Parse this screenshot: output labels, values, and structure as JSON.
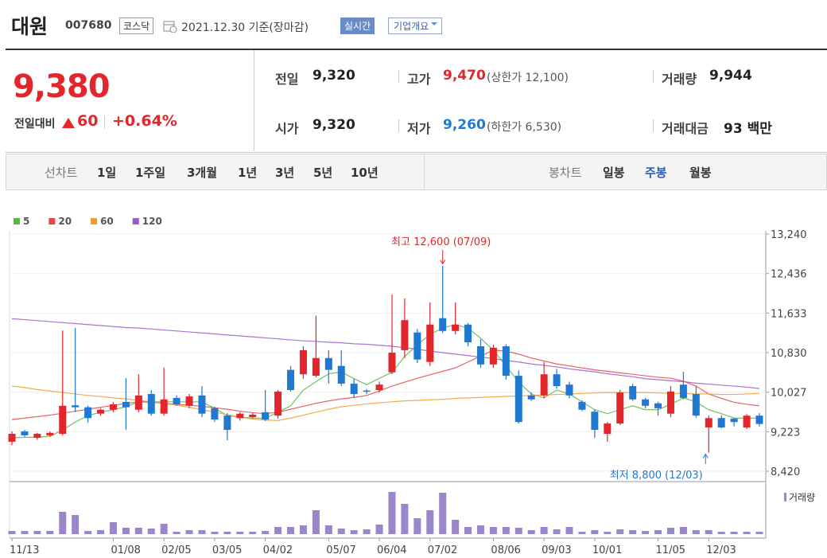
{
  "header": {
    "name": "대원",
    "code": "007680",
    "market": "코스닥",
    "date": "2021.12.30 기준(장마감)",
    "realtime": "실시간",
    "company": "기업개요"
  },
  "quote": {
    "price": "9,380",
    "change_label": "전일대비",
    "change": "60",
    "change_rate": "+0.64%"
  },
  "stats": [
    {
      "label": "전일",
      "value": "9,320"
    },
    {
      "label": "고가",
      "value": "9,470",
      "note": "(상한가 12,100)"
    },
    {
      "label": "거래량",
      "value": "9,944"
    },
    {
      "label": "시가",
      "value": "9,320"
    },
    {
      "label": "저가",
      "value": "9,260",
      "note": "(하한가 6,530)"
    },
    {
      "label": "거래대금",
      "value": "93 백만"
    }
  ],
  "tabs": {
    "line_label": "선차트",
    "line": [
      "1일",
      "1주일",
      "3개월",
      "1년",
      "3년",
      "5년",
      "10년"
    ],
    "candle_label": "봉차트",
    "candle": [
      "일봉",
      "주봉",
      "월봉"
    ]
  },
  "chart_data": {
    "type": "candlestick",
    "categories": [
      "11/13",
      null,
      null,
      null,
      null,
      null,
      null,
      null,
      "01/08",
      null,
      null,
      null,
      "02/05",
      null,
      null,
      null,
      "03/05",
      null,
      null,
      null,
      "04/02",
      null,
      null,
      null,
      null,
      "05/07",
      null,
      null,
      null,
      "06/04",
      null,
      null,
      null,
      "07/02",
      null,
      null,
      null,
      null,
      "08/06",
      null,
      null,
      null,
      "09/03",
      null,
      null,
      null,
      "10/01",
      null,
      null,
      null,
      null,
      "11/05",
      null,
      null,
      null,
      "12/03",
      null,
      null,
      null,
      null
    ],
    "open": [
      9020,
      9230,
      9100,
      9150,
      9180,
      9760,
      9720,
      9590,
      9670,
      9830,
      9670,
      9990,
      9590,
      9910,
      9750,
      9960,
      9700,
      9550,
      9500,
      9520,
      9620,
      9550,
      10480,
      10390,
      10360,
      10720,
      10560,
      10200,
      10060,
      10070,
      10430,
      10880,
      11240,
      10640,
      11530,
      11270,
      11400,
      10960,
      10590,
      10960,
      10360,
      9960,
      9960,
      10390,
      10180,
      9830,
      9630,
      9180,
      9390,
      10150,
      9880,
      9800,
      9590,
      10180,
      9990,
      9310,
      9500,
      9490,
      9310,
      9550
    ],
    "high": [
      9230,
      9260,
      9200,
      9230,
      11280,
      11330,
      9750,
      9700,
      9830,
      10310,
      10390,
      10070,
      10520,
      9960,
      9990,
      10150,
      9730,
      9600,
      9620,
      9600,
      10070,
      10070,
      10560,
      10960,
      11580,
      10880,
      10880,
      10300,
      10090,
      10240,
      12010,
      11930,
      11310,
      11850,
      12600,
      11850,
      11430,
      11100,
      10990,
      11000,
      10470,
      10020,
      10640,
      10500,
      10240,
      9860,
      9680,
      9420,
      10070,
      10200,
      9910,
      9830,
      10150,
      10440,
      10150,
      9550,
      9560,
      9500,
      9580,
      9600
    ],
    "low": [
      8950,
      9120,
      9060,
      9120,
      9150,
      9620,
      9410,
      9550,
      9620,
      9260,
      9620,
      9550,
      9550,
      9750,
      9700,
      9520,
      9420,
      9050,
      9450,
      9500,
      9440,
      9490,
      10040,
      10300,
      10330,
      10200,
      10150,
      9910,
      9990,
      10020,
      10390,
      10720,
      10620,
      10560,
      11230,
      11200,
      10960,
      10520,
      10520,
      10280,
      9390,
      9850,
      9900,
      10100,
      9900,
      9640,
      9100,
      9020,
      9360,
      9850,
      9700,
      9550,
      9520,
      9880,
      9510,
      8800,
      9290,
      9330,
      9280,
      9330
    ],
    "close": [
      9180,
      9150,
      9180,
      9200,
      9750,
      9720,
      9500,
      9670,
      9780,
      9720,
      9960,
      9590,
      9880,
      9780,
      9940,
      9590,
      9470,
      9260,
      9590,
      9570,
      9470,
      10040,
      10070,
      10880,
      10720,
      10480,
      10200,
      9990,
      10040,
      10180,
      10830,
      11490,
      10690,
      11400,
      11270,
      11400,
      11040,
      10590,
      10930,
      10360,
      9420,
      9880,
      10390,
      10150,
      9960,
      9670,
      9260,
      9390,
      10020,
      9880,
      9750,
      9700,
      10040,
      9910,
      9550,
      9500,
      9310,
      9420,
      9550,
      9380
    ],
    "up_color": "#e3262b",
    "down_color": "#1f78d1",
    "series": [
      {
        "name": "5",
        "color": "#5bb54a",
        "values": [
          9100,
          9110,
          9110,
          9130,
          9260,
          9420,
          9550,
          9620,
          9670,
          9730,
          9830,
          9830,
          9830,
          9830,
          9830,
          9830,
          9700,
          9550,
          9520,
          9500,
          9500,
          9620,
          9750,
          10070,
          10240,
          10400,
          10440,
          10300,
          10180,
          10310,
          10430,
          10750,
          10990,
          11200,
          11330,
          11400,
          11330,
          11120,
          10880,
          10560,
          10230,
          9990,
          9910,
          10070,
          9990,
          9830,
          9670,
          9590,
          9670,
          9750,
          9670,
          9670,
          9780,
          9910,
          9830,
          9670,
          9590,
          9500,
          9500,
          9500
        ]
      },
      {
        "name": "20",
        "color": "#e4474d",
        "values": [
          9470,
          9500,
          9530,
          9560,
          9600,
          9640,
          9680,
          9720,
          9760,
          9800,
          9830,
          9820,
          9800,
          9780,
          9760,
          9740,
          9710,
          9680,
          9640,
          9610,
          9590,
          9620,
          9680,
          9740,
          9800,
          9850,
          9890,
          9920,
          9960,
          10050,
          10150,
          10230,
          10310,
          10380,
          10450,
          10520,
          10640,
          10760,
          10880,
          10860,
          10800,
          10720,
          10660,
          10600,
          10560,
          10520,
          10480,
          10450,
          10420,
          10390,
          10360,
          10330,
          10310,
          10250,
          10150,
          9990,
          9900,
          9820,
          9780,
          9750
        ]
      },
      {
        "name": "60",
        "color": "#f29a2e",
        "values": [
          10150,
          10120,
          10080,
          10050,
          10020,
          9990,
          9960,
          9940,
          9910,
          9890,
          9860,
          9830,
          9800,
          9760,
          9720,
          9670,
          9620,
          9570,
          9520,
          9480,
          9460,
          9450,
          9500,
          9560,
          9620,
          9680,
          9730,
          9760,
          9790,
          9810,
          9830,
          9850,
          9860,
          9870,
          9880,
          9900,
          9910,
          9920,
          9930,
          9940,
          9950,
          9960,
          9970,
          9980,
          9990,
          10000,
          10010,
          10020,
          10020,
          10020,
          10020,
          10010,
          10000,
          10000,
          9990,
          9990,
          9980,
          9980,
          9990,
          10000
        ]
      },
      {
        "name": "120",
        "color": "#9b59c9",
        "values": [
          11520,
          11500,
          11480,
          11460,
          11440,
          11420,
          11400,
          11380,
          11360,
          11340,
          11330,
          11310,
          11290,
          11270,
          11250,
          11230,
          11210,
          11190,
          11170,
          11150,
          11130,
          11110,
          11090,
          11070,
          11060,
          11040,
          11030,
          11010,
          11000,
          10980,
          10960,
          10930,
          10900,
          10860,
          10830,
          10800,
          10770,
          10740,
          10710,
          10670,
          10640,
          10600,
          10570,
          10540,
          10500,
          10470,
          10440,
          10400,
          10370,
          10340,
          10300,
          10280,
          10260,
          10240,
          10210,
          10190,
          10170,
          10150,
          10130,
          10100
        ]
      }
    ],
    "ylim": [
      8210,
      13240
    ],
    "yticks": [
      {
        "value": 8420,
        "label": "8,420"
      },
      {
        "value": 9223,
        "label": "9,223"
      },
      {
        "value": 10027,
        "label": "10,027"
      },
      {
        "value": 10830,
        "label": "10,830"
      },
      {
        "value": 11633,
        "label": "11,633"
      },
      {
        "value": 12436,
        "label": "12,436"
      },
      {
        "value": 13240,
        "label": "13,240"
      }
    ],
    "grid": true,
    "volume": {
      "name": "거래량",
      "color": "#9a86c9",
      "ylim": [
        0,
        60
      ],
      "values": [
        4,
        4,
        4,
        4,
        28,
        24,
        4,
        5,
        15,
        8,
        8,
        7,
        13,
        3,
        5,
        5,
        3,
        3,
        3,
        3,
        4,
        9,
        9,
        11,
        30,
        11,
        7,
        5,
        6,
        12,
        53,
        38,
        20,
        30,
        52,
        18,
        9,
        11,
        9,
        9,
        8,
        5,
        9,
        6,
        9,
        3,
        5,
        3,
        6,
        5,
        4,
        5,
        8,
        9,
        5,
        5,
        3,
        3,
        3,
        3
      ]
    },
    "annotations": {
      "high": "최고 12,600 (07/09)",
      "low": "최저 8,800 (12/03)"
    }
  }
}
